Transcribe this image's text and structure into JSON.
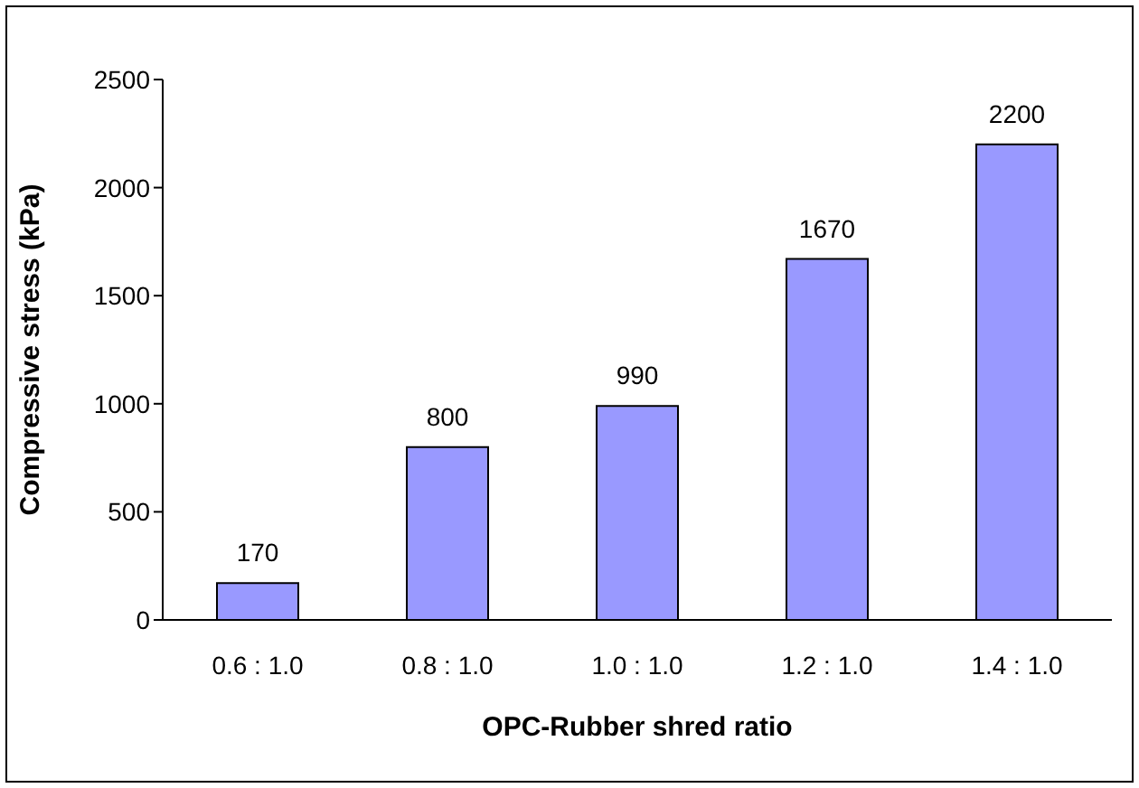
{
  "chart_data": {
    "type": "bar",
    "xlabel": "OPC-Rubber shred ratio",
    "ylabel": "Compressive stress (kPa)",
    "categories": [
      "0.6 : 1.0",
      "0.8 : 1.0",
      "1.0 : 1.0",
      "1.2 : 1.0",
      "1.4 : 1.0"
    ],
    "values": [
      170,
      800,
      990,
      1670,
      2200
    ],
    "color": "#9999ff",
    "ylim": [
      0,
      2500
    ],
    "yticks": [
      0,
      500,
      1000,
      1500,
      2000,
      2500
    ],
    "grid": false,
    "data_labels": true
  }
}
